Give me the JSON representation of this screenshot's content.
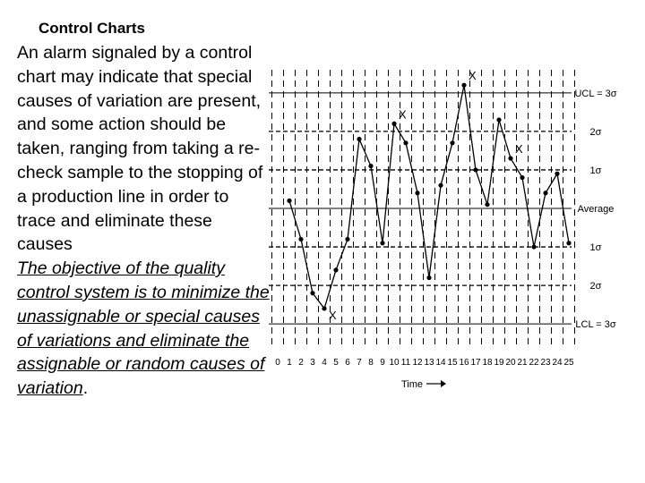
{
  "slide": {
    "title": "Control Charts",
    "paragraph_1": "An alarm signaled by a control chart may indicate that special causes of variation are present, and some action should be taken, ranging from taking a re-check sample to the stopping of a production line in order to trace and eliminate these causes",
    "paragraph_2_main": "The objective of the quality control system is to minimize the unassignable or special causes of variations and eliminate the assignable or random causes of variation",
    "paragraph_2_end": "."
  },
  "chart_data": {
    "type": "line",
    "xlabel": "Time",
    "x": [
      1,
      2,
      3,
      4,
      5,
      6,
      7,
      8,
      9,
      10,
      11,
      12,
      13,
      14,
      15,
      16,
      17,
      18,
      19,
      20,
      21,
      22,
      23,
      24,
      25
    ],
    "y": [
      0.2,
      -0.8,
      -2.2,
      -2.6,
      -1.6,
      -0.8,
      1.8,
      1.1,
      -0.9,
      2.2,
      1.7,
      0.4,
      -1.8,
      0.6,
      1.7,
      3.2,
      1.0,
      0.1,
      2.3,
      1.3,
      0.8,
      -1.0,
      0.4,
      0.9,
      -0.9
    ],
    "x_ticks": [
      "0",
      "1",
      "2",
      "3",
      "4",
      "5",
      "6",
      "7",
      "8",
      "9",
      "10",
      "11",
      "12",
      "13",
      "14",
      "15",
      "16",
      "17",
      "18",
      "19",
      "20",
      "21",
      "22",
      "23",
      "24",
      "25"
    ],
    "xlim": [
      0,
      25
    ],
    "ylim": [
      -3.6,
      3.6
    ],
    "reference_lines": [
      {
        "label": "UCL = 3σ",
        "value": 3,
        "style": "solid"
      },
      {
        "label": "2σ",
        "value": 2,
        "style": "dashed"
      },
      {
        "label": "1σ",
        "value": 1,
        "style": "dashed"
      },
      {
        "label": "Average",
        "value": 0,
        "style": "solid"
      },
      {
        "label": "1σ",
        "value": -1,
        "style": "dashed"
      },
      {
        "label": "2σ",
        "value": -2,
        "style": "dashed"
      },
      {
        "label": "LCL = 3σ",
        "value": -3,
        "style": "solid"
      }
    ],
    "annotations": [
      {
        "text": "X",
        "x": 16
      },
      {
        "text": "X",
        "x": 10
      },
      {
        "text": "X",
        "x": 20
      },
      {
        "text": "X",
        "x": 4
      }
    ],
    "grid": "vertical dashed"
  }
}
